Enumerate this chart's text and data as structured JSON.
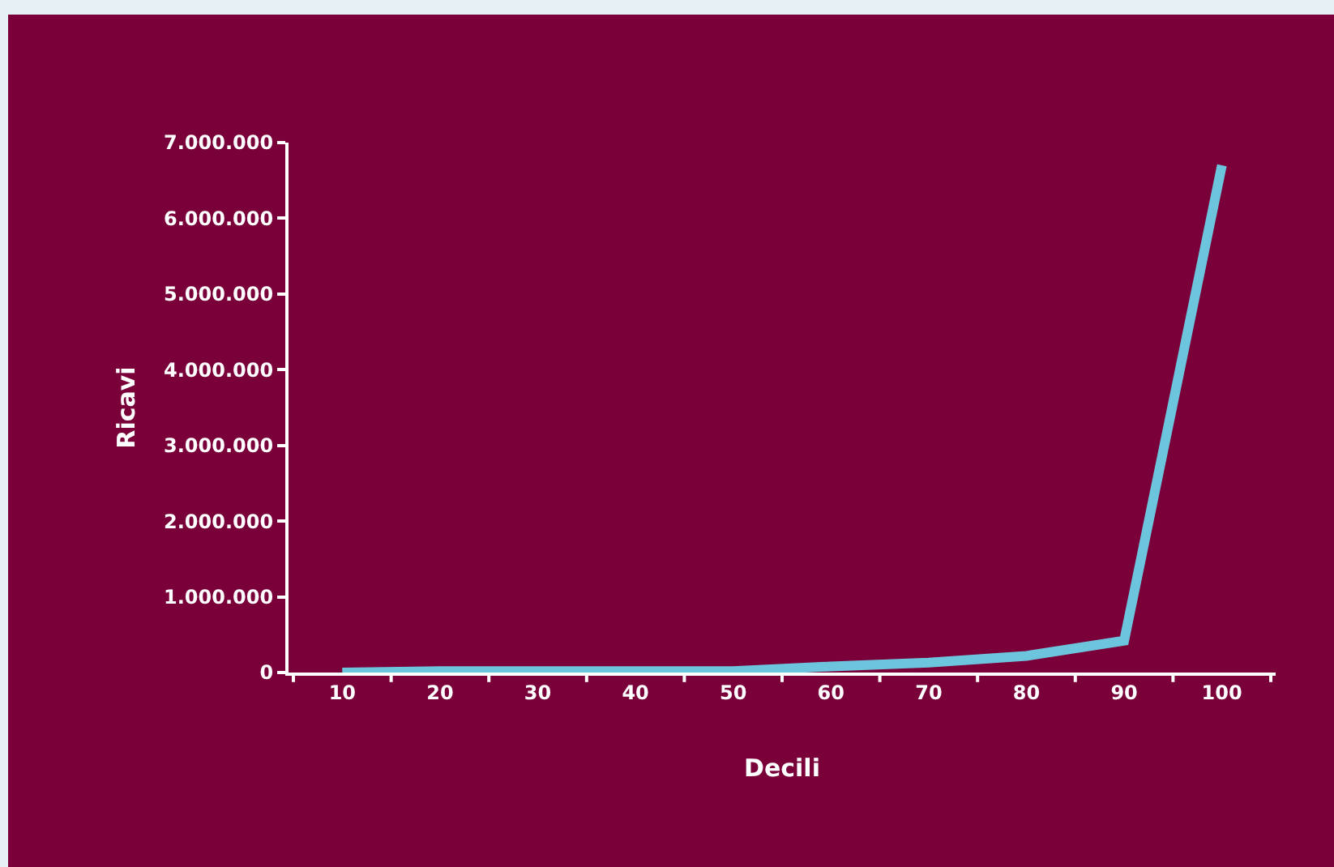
{
  "chart_data": {
    "type": "line",
    "xlabel": "Decili",
    "ylabel": "Ricavi",
    "categories": [
      "10",
      "20",
      "30",
      "40",
      "50",
      "60",
      "70",
      "80",
      "90",
      "100"
    ],
    "series": [
      {
        "color": "#6cc5dd",
        "values": [
          0,
          20000,
          20000,
          20000,
          20000,
          80000,
          130000,
          220000,
          420000,
          6700000
        ]
      }
    ],
    "ylim": [
      0,
      7000000
    ],
    "yticks": [
      {
        "value": 0,
        "label": "0"
      },
      {
        "value": 1000000,
        "label": "1.000.000"
      },
      {
        "value": 2000000,
        "label": "2.000.000"
      },
      {
        "value": 3000000,
        "label": "3.000.000"
      },
      {
        "value": 4000000,
        "label": "4.000.000"
      },
      {
        "value": 5000000,
        "label": "5.000.000"
      },
      {
        "value": 6000000,
        "label": "6.000.000"
      },
      {
        "value": 7000000,
        "label": "7.000.000"
      }
    ],
    "grid": false,
    "marker": "none",
    "line_style": "solid"
  }
}
